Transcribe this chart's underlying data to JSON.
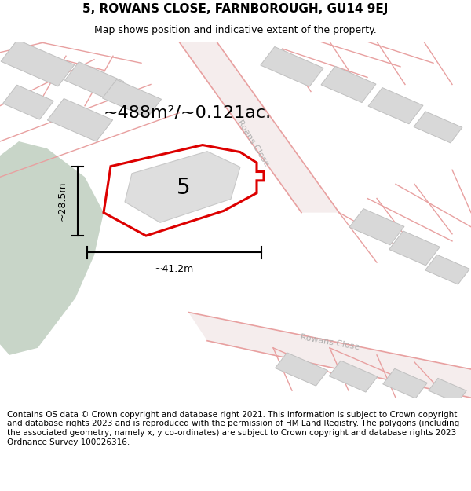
{
  "title": "5, ROWANS CLOSE, FARNBOROUGH, GU14 9EJ",
  "subtitle": "Map shows position and indicative extent of the property.",
  "footer": "Contains OS data © Crown copyright and database right 2021. This information is subject to Crown copyright and database rights 2023 and is reproduced with the permission of HM Land Registry. The polygons (including the associated geometry, namely x, y co-ordinates) are subject to Crown copyright and database rights 2023 Ordnance Survey 100026316.",
  "area_text": "~488m²/~0.121ac.",
  "dim_width": "~41.2m",
  "dim_height": "~28.5m",
  "plot_number": "5",
  "map_bg": "#f5f5f5",
  "green_color": "#c8d5c8",
  "road_color": "#f0c8c8",
  "building_color": "#d8d8d8",
  "building_edge": "#c0c0c0",
  "plot_color": "#dd0000",
  "street_label_color": "#b0b0b0",
  "boundary_color": "#e8a0a0",
  "title_fontsize": 11,
  "subtitle_fontsize": 9,
  "footer_fontsize": 7.5,
  "area_fontsize": 16,
  "dim_fontsize": 9,
  "plot_label_fontsize": 20
}
